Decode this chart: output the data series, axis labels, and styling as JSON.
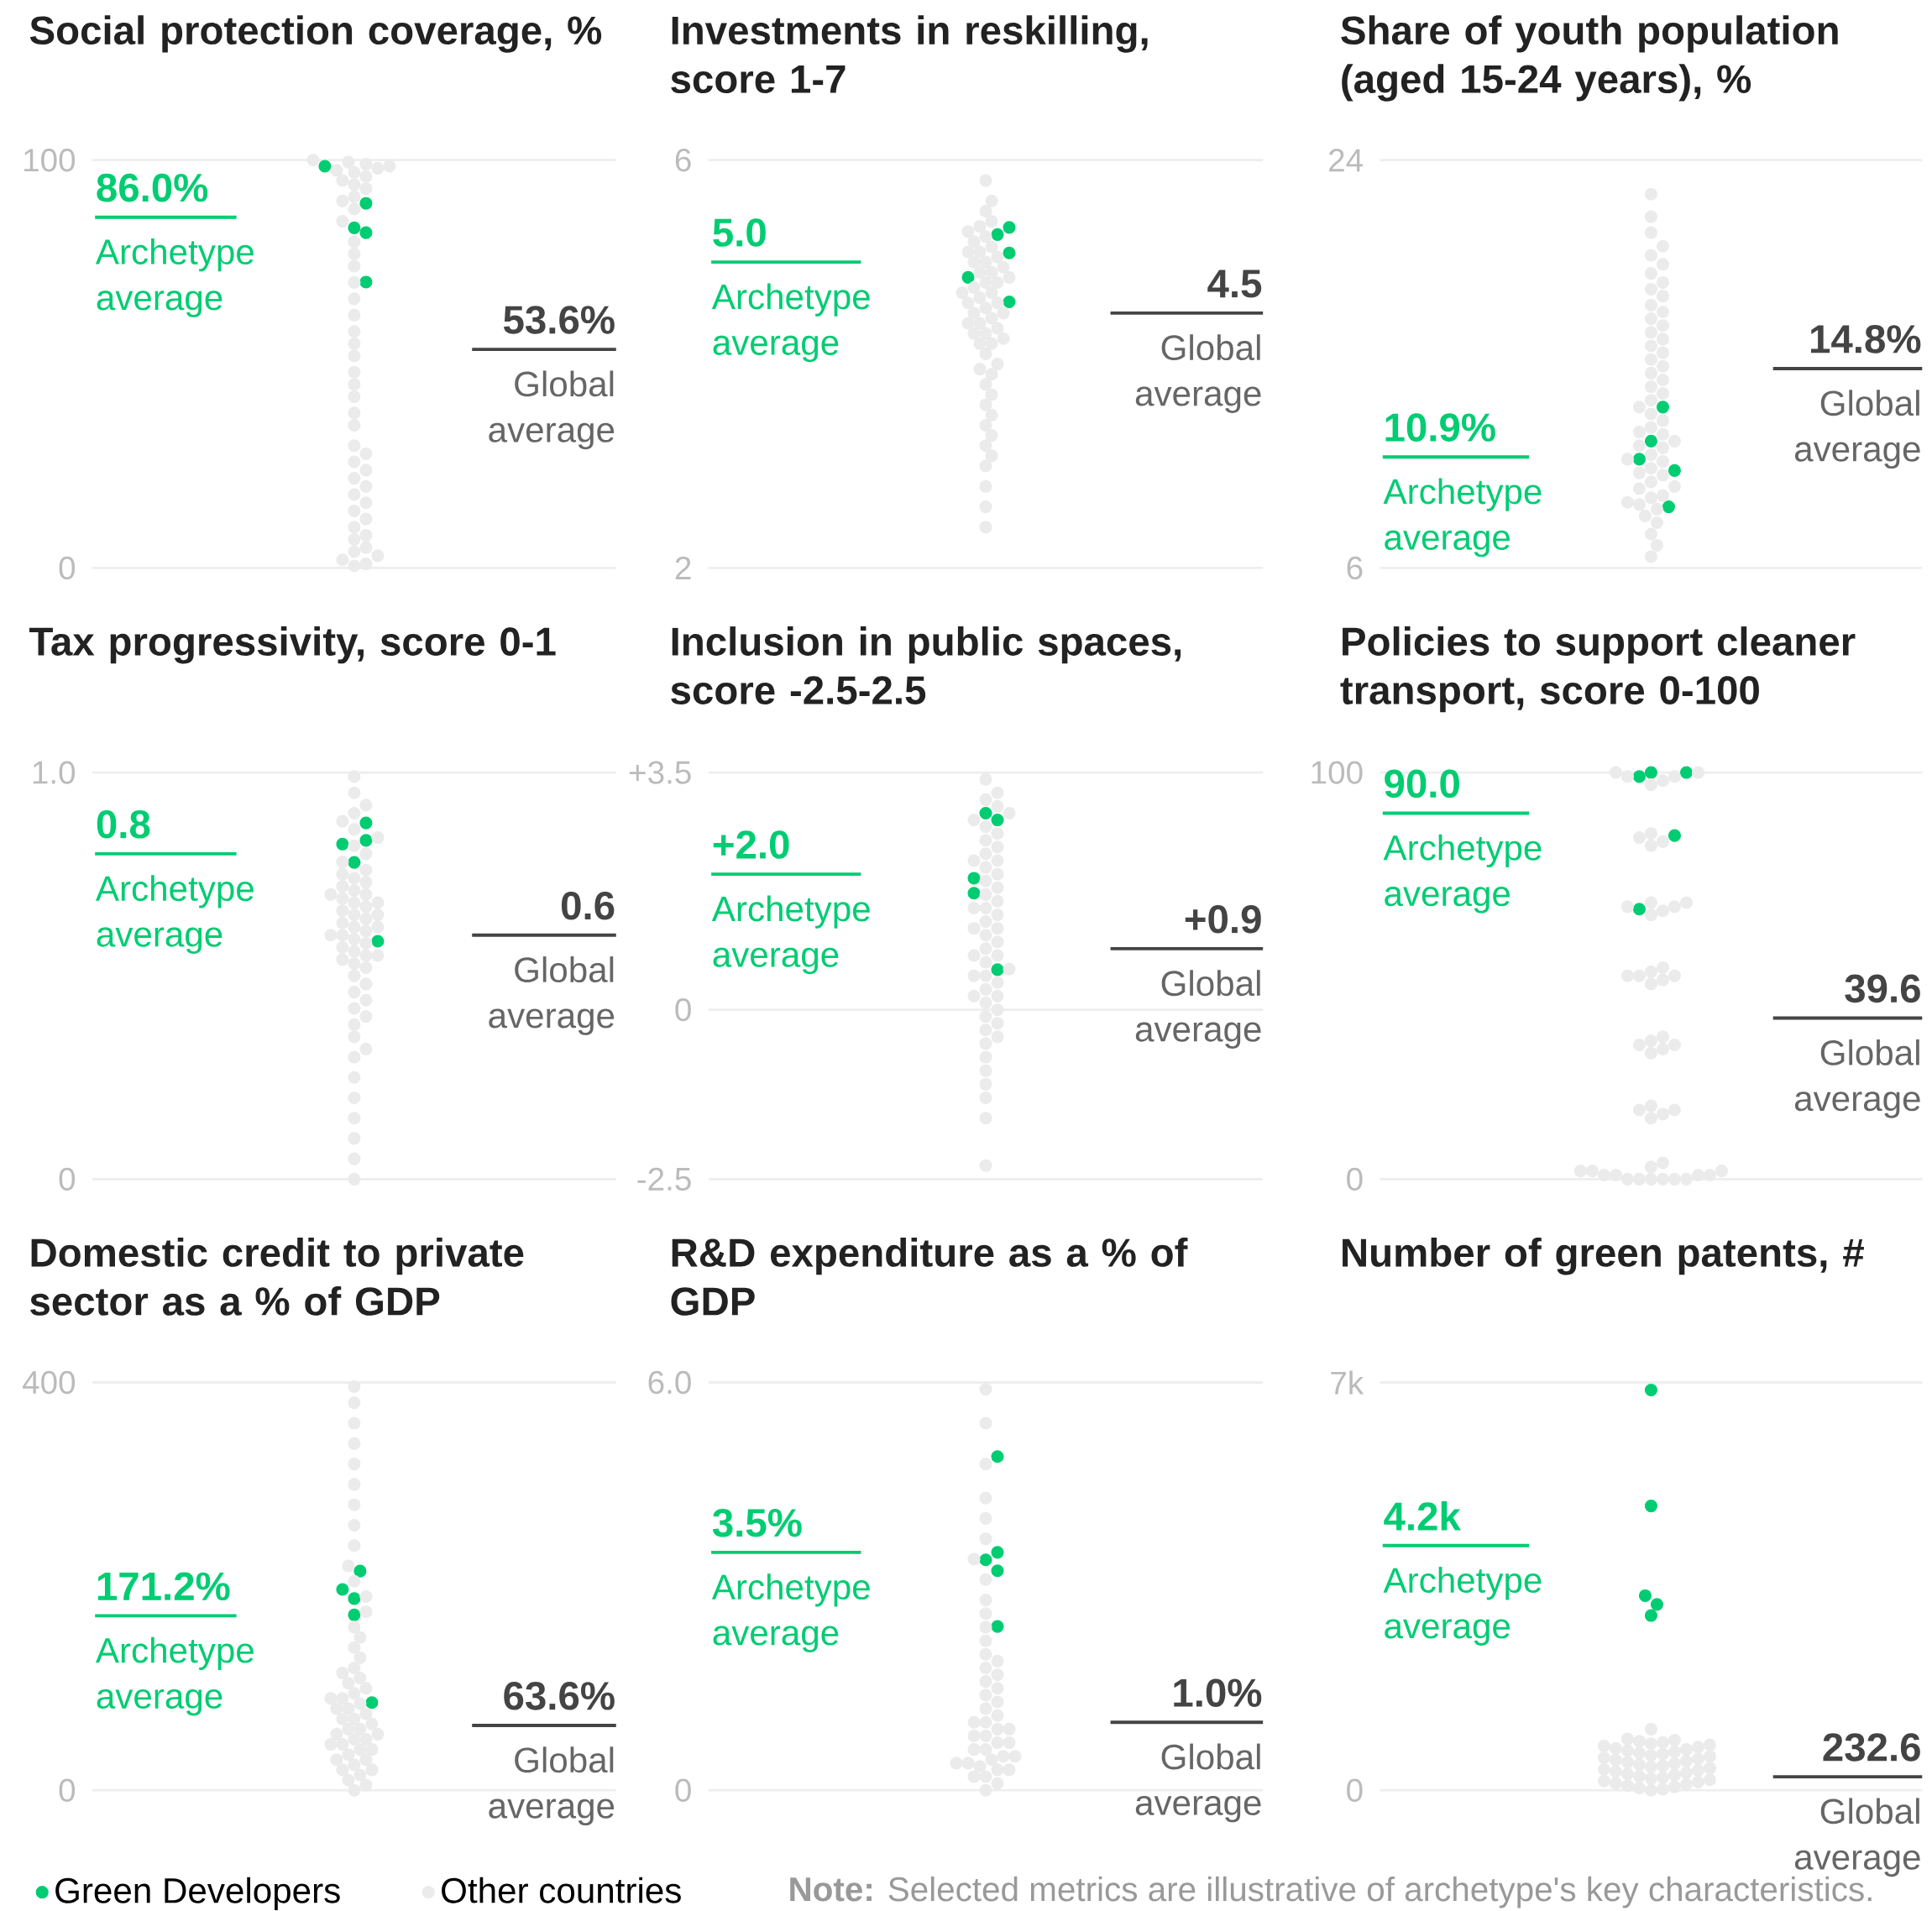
{
  "chart_data": [
    {
      "type": "scatter",
      "title": "Social protection coverage, %",
      "categories": [
        null
      ],
      "ylim": [
        0,
        100
      ],
      "yticks": [
        0,
        100
      ],
      "grid": "y",
      "marker": "circle",
      "tick_labels": "y",
      "series": [
        {
          "color": "#00cc72",
          "x": [
            null,
            null,
            null,
            null,
            null
          ],
          "values": [
            98.5,
            89.4,
            83.4,
            82.2,
            70.1
          ]
        },
        {
          "color": "#ebebeb",
          "x": [
            null,
            null,
            null,
            null,
            null,
            null,
            null,
            null,
            null,
            null,
            null,
            null,
            null,
            null,
            null,
            null,
            null,
            null,
            null,
            null,
            null,
            null,
            null,
            null,
            null,
            null,
            null,
            null,
            null,
            null,
            null,
            null,
            null,
            null,
            null,
            null,
            null,
            null,
            null,
            null,
            null,
            null,
            null,
            null,
            null,
            null,
            null,
            null
          ],
          "values": [
            100,
            99.5,
            99,
            98.5,
            98,
            97.5,
            97,
            96,
            95,
            94,
            93,
            91,
            90,
            88,
            85,
            80,
            77,
            74,
            70,
            66,
            62,
            58,
            55,
            52,
            48,
            45,
            42,
            38,
            35,
            30,
            28,
            26,
            24,
            22,
            20,
            18,
            16,
            14,
            12,
            10,
            8,
            7,
            5,
            4,
            3,
            2,
            1,
            0.5
          ]
        }
      ],
      "ref_lines": [
        {
          "axis": "y",
          "value": 86.0,
          "label": "86.0%",
          "color": "#00cc72"
        },
        {
          "axis": "y",
          "value": 53.6,
          "label": "53.6%",
          "color": "#444444"
        }
      ],
      "annotations": [
        {
          "text": "Archetype average",
          "y": 86.0
        },
        {
          "text": "Global average",
          "y": 53.6
        }
      ]
    },
    {
      "type": "scatter",
      "title": "Investments in reskilling, score 1-7",
      "categories": [
        null
      ],
      "ylim": [
        2,
        6
      ],
      "yticks": [
        2,
        6
      ],
      "grid": "y",
      "marker": "circle",
      "tick_labels": "y",
      "series": [
        {
          "color": "#00cc72",
          "x": [
            null,
            null,
            null,
            null,
            null
          ],
          "values": [
            5.34,
            5.27,
            5.09,
            4.85,
            4.61
          ]
        },
        {
          "color": "#ebebeb",
          "x": [
            null,
            null,
            null,
            null,
            null,
            null,
            null,
            null,
            null,
            null,
            null,
            null,
            null,
            null,
            null,
            null,
            null,
            null,
            null,
            null,
            null,
            null,
            null,
            null,
            null,
            null,
            null,
            null,
            null,
            null,
            null,
            null,
            null,
            null,
            null,
            null,
            null,
            null,
            null,
            null,
            null,
            null,
            null,
            null,
            null,
            null,
            null,
            null,
            null,
            null,
            null,
            null,
            null,
            null
          ],
          "values": [
            5.8,
            5.6,
            5.5,
            5.4,
            5.35,
            5.3,
            5.25,
            5.2,
            5.15,
            5.1,
            5.05,
            5.0,
            4.95,
            4.9,
            4.85,
            4.8,
            4.75,
            4.7,
            4.65,
            4.6,
            4.55,
            4.5,
            4.45,
            4.4,
            4.35,
            4.3,
            4.25,
            4.2,
            4.1,
            4.0,
            3.95,
            3.9,
            3.8,
            3.7,
            3.6,
            3.5,
            3.4,
            3.3,
            3.2,
            3.1,
            3.0,
            2.8,
            2.6,
            2.4,
            4.9,
            4.8,
            4.7,
            4.6,
            4.5,
            4.4,
            4.3,
            5.0,
            5.1,
            4.2
          ]
        }
      ],
      "ref_lines": [
        {
          "axis": "y",
          "value": 5.0,
          "label": "5.0",
          "color": "#00cc72"
        },
        {
          "axis": "y",
          "value": 4.5,
          "label": "4.5",
          "color": "#444444"
        }
      ],
      "annotations": [
        {
          "text": "Archetype average",
          "y": 5.0
        },
        {
          "text": "Global average",
          "y": 4.5
        }
      ]
    },
    {
      "type": "scatter",
      "title": "Share of youth population (aged 15-24 years), %",
      "categories": [
        null
      ],
      "ylim": [
        6,
        24
      ],
      "yticks": [
        6,
        24
      ],
      "grid": "y",
      "marker": "circle",
      "tick_labels": "y",
      "series": [
        {
          "color": "#00cc72",
          "x": [
            null,
            null,
            null,
            null,
            null
          ],
          "values": [
            13.1,
            11.6,
            10.8,
            10.3,
            8.7
          ]
        },
        {
          "color": "#ebebeb",
          "x": [
            null,
            null,
            null,
            null,
            null,
            null,
            null,
            null,
            null,
            null,
            null,
            null,
            null,
            null,
            null,
            null,
            null,
            null,
            null,
            null,
            null,
            null,
            null,
            null,
            null,
            null,
            null,
            null,
            null,
            null,
            null,
            null,
            null,
            null,
            null,
            null,
            null,
            null,
            null,
            null,
            null,
            null,
            null,
            null,
            null,
            null,
            null,
            null,
            null,
            null,
            null,
            null,
            null
          ],
          "values": [
            22.5,
            21.5,
            20.8,
            20.2,
            19.8,
            19.4,
            19,
            18.6,
            18.3,
            18,
            17.6,
            17.3,
            17,
            16.7,
            16.4,
            16.1,
            15.8,
            15.5,
            15.2,
            14.9,
            14.6,
            14.3,
            14,
            13.7,
            13.4,
            13.1,
            12.8,
            12.5,
            12.2,
            11.9,
            11.6,
            11.3,
            11,
            10.7,
            10.4,
            10.1,
            9.8,
            9.5,
            9.2,
            8.9,
            8.6,
            8.3,
            8,
            7.5,
            7,
            6.5,
            9.6,
            10.2,
            10.8,
            11.4,
            12,
            9.1,
            8.8
          ]
        }
      ],
      "ref_lines": [
        {
          "axis": "y",
          "value": 10.9,
          "label": "10.9%",
          "color": "#00cc72"
        },
        {
          "axis": "y",
          "value": 14.8,
          "label": "14.8%",
          "color": "#444444"
        }
      ],
      "annotations": [
        {
          "text": "Archetype average",
          "y": 10.9
        },
        {
          "text": "Global average",
          "y": 14.8
        }
      ]
    },
    {
      "type": "scatter",
      "title": "Tax progressivity, score 0-1",
      "categories": [
        null
      ],
      "ylim": [
        0,
        1.0
      ],
      "yticks": [
        0,
        {
          "value": 1.0,
          "label": "1.0"
        }
      ],
      "grid": "y",
      "marker": "circle",
      "tick_labels": "y",
      "series": [
        {
          "color": "#00cc72",
          "x": [
            null,
            null,
            null,
            null,
            null
          ],
          "values": [
            0.876,
            0.833,
            0.824,
            0.779,
            0.585
          ]
        },
        {
          "color": "#ebebeb",
          "x": [
            null,
            null,
            null,
            null,
            null,
            null,
            null,
            null,
            null,
            null,
            null,
            null,
            null,
            null,
            null,
            null,
            null,
            null,
            null,
            null,
            null,
            null,
            null,
            null,
            null,
            null,
            null,
            null,
            null,
            null,
            null,
            null,
            null,
            null,
            null,
            null,
            null,
            null,
            null,
            null,
            null,
            null,
            null,
            null,
            null,
            null,
            null,
            null,
            null,
            null,
            null,
            null,
            null,
            null,
            null,
            null,
            null
          ],
          "values": [
            0.99,
            0.95,
            0.92,
            0.9,
            0.88,
            0.86,
            0.84,
            0.82,
            0.8,
            0.78,
            0.76,
            0.75,
            0.74,
            0.73,
            0.72,
            0.71,
            0.7,
            0.69,
            0.68,
            0.67,
            0.66,
            0.65,
            0.64,
            0.63,
            0.62,
            0.61,
            0.6,
            0.59,
            0.58,
            0.57,
            0.56,
            0.55,
            0.54,
            0.53,
            0.52,
            0.5,
            0.48,
            0.46,
            0.44,
            0.42,
            0.4,
            0.38,
            0.35,
            0.32,
            0.3,
            0.25,
            0.2,
            0.15,
            0.1,
            0.05,
            0,
            0.6,
            0.65,
            0.7,
            0.55,
            0.62,
            0.68
          ]
        }
      ],
      "ref_lines": [
        {
          "axis": "y",
          "value": 0.8,
          "label": "0.8",
          "color": "#00cc72"
        },
        {
          "axis": "y",
          "value": 0.6,
          "label": "0.6",
          "color": "#444444"
        }
      ],
      "annotations": [
        {
          "text": "Archetype average",
          "y": 0.8
        },
        {
          "text": "Global average",
          "y": 0.6
        }
      ]
    },
    {
      "type": "scatter",
      "title": "Inclusion in public spaces, score -2.5-2.5",
      "categories": [
        null
      ],
      "ylim": [
        -2.5,
        3.5
      ],
      "yticks": [
        -2.5,
        0,
        {
          "value": 3.5,
          "label": "+3.5"
        }
      ],
      "grid": "y",
      "marker": "circle",
      "tick_labels": "y",
      "series": [
        {
          "color": "#00cc72",
          "x": [
            null,
            null,
            null,
            null,
            null
          ],
          "values": [
            2.9,
            2.8,
            1.94,
            1.72,
            0.59
          ]
        },
        {
          "color": "#ebebeb",
          "x": [
            null,
            null,
            null,
            null,
            null,
            null,
            null,
            null,
            null,
            null,
            null,
            null,
            null,
            null,
            null,
            null,
            null,
            null,
            null,
            null,
            null,
            null,
            null,
            null,
            null,
            null,
            null,
            null,
            null,
            null,
            null,
            null,
            null,
            null,
            null,
            null,
            null,
            null,
            null,
            null,
            null,
            null,
            null,
            null,
            null,
            null,
            null,
            null,
            null,
            null,
            null
          ],
          "values": [
            3.4,
            3.2,
            3.1,
            3,
            2.9,
            2.8,
            2.7,
            2.6,
            2.5,
            2.4,
            2.3,
            2.2,
            2.1,
            2,
            1.9,
            1.8,
            1.7,
            1.6,
            1.5,
            1.4,
            1.3,
            1.2,
            1.1,
            1,
            0.9,
            0.8,
            0.7,
            0.6,
            0.5,
            0.4,
            0.3,
            0.2,
            0.1,
            0,
            -0.1,
            -0.2,
            -0.3,
            -0.4,
            -0.5,
            -0.7,
            -0.9,
            -1.1,
            -1.3,
            -1.6,
            -2.3,
            1.5,
            1.2,
            0.8,
            0.5,
            2.2,
            0.2
          ]
        }
      ],
      "ref_lines": [
        {
          "axis": "y",
          "value": 2.0,
          "label": "+2.0",
          "color": "#00cc72"
        },
        {
          "axis": "y",
          "value": 0.9,
          "label": "+0.9",
          "color": "#444444"
        }
      ],
      "annotations": [
        {
          "text": "Archetype average",
          "y": 2.0
        },
        {
          "text": "Global average",
          "y": 0.9
        }
      ]
    },
    {
      "type": "scatter",
      "title": "Policies to support cleaner transport, score 0-100",
      "categories": [
        null
      ],
      "ylim": [
        0,
        100
      ],
      "yticks": [
        0,
        100
      ],
      "grid": "y",
      "marker": "circle",
      "tick_labels": "y",
      "series": [
        {
          "color": "#00cc72",
          "x": [
            null,
            null,
            null,
            null,
            null
          ],
          "values": [
            100,
            100,
            99,
            84.5,
            66.4
          ]
        },
        {
          "color": "#ebebeb",
          "x": [
            null,
            null,
            null,
            null,
            null,
            null,
            null,
            null,
            null,
            null,
            null,
            null,
            null,
            null,
            null,
            null,
            null,
            null,
            null,
            null,
            null,
            null,
            null,
            null,
            null,
            null,
            null,
            null,
            null,
            null,
            null,
            null,
            null,
            null,
            null,
            null,
            null,
            null,
            null,
            null,
            null,
            null,
            null,
            null,
            null,
            null,
            null,
            null,
            null
          ],
          "values": [
            100,
            99,
            98,
            100,
            99,
            97,
            85,
            84,
            83,
            82,
            68,
            67,
            66,
            67,
            65,
            68,
            51,
            50,
            49,
            50,
            52,
            48,
            50,
            34,
            33,
            32,
            33,
            35,
            31,
            18,
            17,
            16,
            17,
            15,
            0,
            1,
            2,
            0,
            1,
            3,
            0,
            2,
            1,
            0,
            4,
            0,
            1,
            2,
            0
          ]
        }
      ],
      "ref_lines": [
        {
          "axis": "y",
          "value": 90.0,
          "label": "90.0",
          "color": "#00cc72"
        },
        {
          "axis": "y",
          "value": 39.6,
          "label": "39.6",
          "color": "#444444"
        }
      ],
      "annotations": [
        {
          "text": "Archetype average",
          "y": 90.0
        },
        {
          "text": "Global average",
          "y": 39.6
        }
      ]
    },
    {
      "type": "scatter",
      "title": "Domestic credit to private sector as a % of GDP",
      "categories": [
        null
      ],
      "ylim": [
        0,
        400
      ],
      "yticks": [
        0,
        400
      ],
      "grid": "y",
      "marker": "circle",
      "tick_labels": "y",
      "legend": "bottom",
      "series": [
        {
          "name": "Green Developers",
          "color": "#00cc72",
          "x": [
            null,
            null,
            null,
            null,
            null
          ],
          "values": [
            215,
            197,
            188,
            172,
            86
          ]
        },
        {
          "name": "Other countries",
          "color": "#ebebeb",
          "x": [
            null,
            null,
            null,
            null,
            null,
            null,
            null,
            null,
            null,
            null,
            null,
            null,
            null,
            null,
            null,
            null,
            null,
            null,
            null,
            null,
            null,
            null,
            null,
            null,
            null,
            null,
            null,
            null,
            null,
            null,
            null,
            null,
            null,
            null,
            null,
            null,
            null,
            null,
            null,
            null,
            null,
            null,
            null,
            null,
            null,
            null,
            null,
            null,
            null,
            null,
            null,
            null
          ],
          "values": [
            396,
            380,
            360,
            340,
            320,
            300,
            280,
            260,
            240,
            220,
            205,
            190,
            175,
            160,
            150,
            140,
            130,
            120,
            115,
            110,
            105,
            100,
            95,
            90,
            85,
            80,
            75,
            70,
            65,
            60,
            55,
            50,
            45,
            40,
            35,
            30,
            25,
            20,
            15,
            10,
            5,
            0,
            60,
            70,
            50,
            40,
            30,
            80,
            90,
            20,
            45,
            55
          ]
        }
      ],
      "ref_lines": [
        {
          "axis": "y",
          "value": 171.2,
          "label": "171.2%",
          "color": "#00cc72"
        },
        {
          "axis": "y",
          "value": 63.6,
          "label": "63.6%",
          "color": "#444444"
        }
      ],
      "annotations": [
        {
          "text": "Archetype average",
          "y": 171.2
        },
        {
          "text": "Global average",
          "y": 63.6
        }
      ]
    },
    {
      "type": "scatter",
      "title": "R&D expenditure as a % of GDP",
      "categories": [
        null
      ],
      "ylim": [
        0,
        6.0
      ],
      "yticks": [
        0,
        {
          "value": 6.0,
          "label": "6.0"
        }
      ],
      "grid": "y",
      "marker": "circle",
      "tick_labels": "y",
      "series": [
        {
          "color": "#00cc72",
          "x": [
            null,
            null,
            null,
            null,
            null
          ],
          "values": [
            4.91,
            3.5,
            3.39,
            3.23,
            2.41
          ]
        },
        {
          "color": "#ebebeb",
          "x": [
            null,
            null,
            null,
            null,
            null,
            null,
            null,
            null,
            null,
            null,
            null,
            null,
            null,
            null,
            null,
            null,
            null,
            null,
            null,
            null,
            null,
            null,
            null,
            null,
            null,
            null,
            null,
            null,
            null,
            null,
            null,
            null,
            null,
            null,
            null,
            null,
            null,
            null,
            null,
            null,
            null,
            null,
            null,
            null
          ],
          "values": [
            5.9,
            5.4,
            4.8,
            4.3,
            4.0,
            3.7,
            3.4,
            3.1,
            2.8,
            2.6,
            2.4,
            2.2,
            2.0,
            1.9,
            1.8,
            1.7,
            1.6,
            1.5,
            1.4,
            1.3,
            1.2,
            1.1,
            1.0,
            0.9,
            0.8,
            0.7,
            0.6,
            0.5,
            0.4,
            0.3,
            0.2,
            0.1,
            0,
            0.5,
            0.6,
            0.4,
            0.3,
            0.8,
            1.0,
            0.2,
            0.7,
            0.9,
            0.35,
            0.45
          ]
        }
      ],
      "ref_lines": [
        {
          "axis": "y",
          "value": 3.5,
          "label": "3.5%",
          "color": "#00cc72"
        },
        {
          "axis": "y",
          "value": 1.0,
          "label": "1.0%",
          "color": "#444444"
        }
      ],
      "annotations": [
        {
          "text": "Archetype average",
          "y": 3.5
        },
        {
          "text": "Global average",
          "y": 1.0
        }
      ]
    },
    {
      "type": "scatter",
      "title": "Number of green patents, #",
      "categories": [
        null
      ],
      "ylim": [
        0,
        7000
      ],
      "yticks": [
        0,
        {
          "value": 7000,
          "label": "7k"
        }
      ],
      "grid": "y",
      "marker": "circle",
      "tick_labels": "y",
      "series": [
        {
          "color": "#00cc72",
          "x": [
            null,
            null,
            null,
            null,
            null
          ],
          "values": [
            6870,
            4880,
            3340,
            3190,
            3000
          ]
        },
        {
          "color": "#ebebeb",
          "x": [
            null,
            null,
            null,
            null,
            null,
            null,
            null,
            null,
            null,
            null,
            null,
            null,
            null,
            null,
            null,
            null,
            null,
            null,
            null,
            null,
            null,
            null,
            null,
            null,
            null,
            null,
            null,
            null,
            null,
            null,
            null,
            null,
            null,
            null,
            null,
            null,
            null,
            null,
            null,
            null,
            null,
            null,
            null,
            null,
            null,
            null
          ],
          "values": [
            1050,
            880,
            860,
            840,
            820,
            800,
            780,
            760,
            740,
            720,
            700,
            680,
            660,
            640,
            620,
            600,
            580,
            560,
            540,
            520,
            500,
            480,
            460,
            440,
            420,
            400,
            380,
            360,
            340,
            320,
            300,
            280,
            260,
            240,
            220,
            200,
            180,
            160,
            140,
            120,
            100,
            80,
            60,
            40,
            20,
            0
          ]
        }
      ],
      "ref_lines": [
        {
          "axis": "y",
          "value": 4200,
          "label": "4.2k",
          "color": "#00cc72"
        },
        {
          "axis": "y",
          "value": 232.6,
          "label": "232.6",
          "color": "#444444"
        }
      ],
      "annotations": [
        {
          "text": "Archetype average",
          "y": 4200
        },
        {
          "text": "Global average",
          "y": 232.6
        },
        "**Note:** Selected metrics are illustrative of archetype's key characteristics."
      ]
    }
  ]
}
